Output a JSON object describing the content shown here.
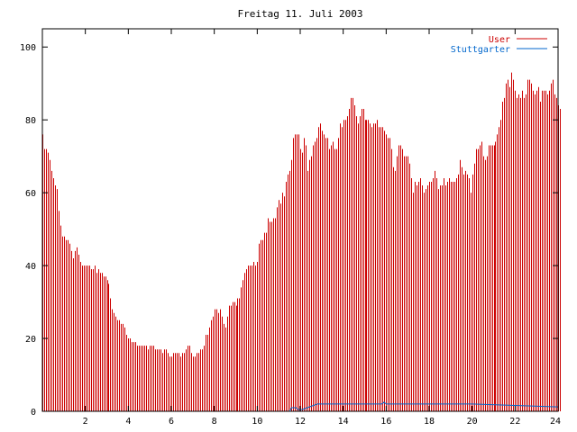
{
  "chart_data": {
    "type": "bar",
    "title": "Freitag 11. Juli 2003",
    "xlabel": "",
    "ylabel": "",
    "xlim": [
      0,
      24
    ],
    "ylim": [
      0,
      105
    ],
    "x_ticks": [
      2,
      4,
      6,
      8,
      10,
      12,
      14,
      16,
      18,
      20,
      22,
      24
    ],
    "y_ticks": [
      0,
      20,
      40,
      60,
      80,
      100
    ],
    "legend_position": "top-right",
    "grid": false,
    "series": [
      {
        "name": "User",
        "color": "#cc0000",
        "interval_minutes": 5,
        "values": [
          76,
          72,
          72,
          71,
          69,
          66,
          64,
          62,
          61,
          55,
          51,
          48,
          48,
          47,
          47,
          46,
          44,
          42,
          44,
          45,
          43,
          41,
          40,
          40,
          40,
          40,
          40,
          39,
          39,
          40,
          38,
          39,
          38,
          38,
          37,
          37,
          36,
          35,
          31,
          28,
          27,
          26,
          25,
          25,
          24,
          24,
          23,
          21,
          20,
          20,
          19,
          19,
          19,
          18,
          18,
          18,
          18,
          18,
          18,
          17,
          18,
          18,
          18,
          17,
          17,
          17,
          17,
          16,
          17,
          17,
          16,
          15,
          15,
          16,
          16,
          16,
          16,
          15,
          16,
          16,
          17,
          18,
          18,
          16,
          15,
          15,
          16,
          16,
          17,
          17,
          18,
          21,
          21,
          23,
          25,
          26,
          28,
          28,
          27,
          28,
          26,
          24,
          23,
          26,
          29,
          29,
          30,
          30,
          29,
          31,
          31,
          34,
          36,
          38,
          39,
          40,
          40,
          40,
          41,
          40,
          41,
          46,
          47,
          47,
          49,
          49,
          53,
          52,
          52,
          53,
          53,
          56,
          58,
          57,
          60,
          59,
          63,
          65,
          66,
          69,
          75,
          76,
          76,
          76,
          72,
          71,
          75,
          73,
          66,
          69,
          70,
          73,
          74,
          75,
          78,
          79,
          77,
          76,
          75,
          75,
          72,
          73,
          74,
          72,
          72,
          75,
          79,
          78,
          80,
          80,
          81,
          83,
          86,
          86,
          84,
          81,
          79,
          81,
          83,
          83,
          80,
          80,
          80,
          79,
          78,
          79,
          79,
          80,
          78,
          78,
          78,
          77,
          76,
          75,
          75,
          72,
          67,
          66,
          70,
          73,
          73,
          72,
          70,
          70,
          70,
          68,
          64,
          60,
          63,
          62,
          63,
          64,
          62,
          60,
          61,
          62,
          63,
          63,
          64,
          66,
          64,
          61,
          62,
          62,
          64,
          62,
          63,
          64,
          63,
          63,
          63,
          64,
          65,
          69,
          67,
          65,
          66,
          65,
          64,
          60,
          65,
          68,
          72,
          72,
          73,
          74,
          70,
          69,
          70,
          73,
          73,
          73,
          73,
          74,
          76,
          78,
          80,
          85,
          86,
          90,
          91,
          89,
          93,
          91,
          88,
          86,
          87,
          86,
          88,
          86,
          87,
          91,
          91,
          90,
          88,
          87,
          88,
          89,
          85,
          88,
          88,
          88,
          87,
          88,
          90,
          91,
          87,
          86,
          84,
          83
        ]
      },
      {
        "name": "Stuttgarter",
        "color": "#0066cc",
        "points": [
          [
            0,
            0
          ],
          [
            11.5,
            0
          ],
          [
            11.6,
            1
          ],
          [
            11.8,
            1
          ],
          [
            11.9,
            0.5
          ],
          [
            12.0,
            0.5
          ],
          [
            12.1,
            0.5
          ],
          [
            12.8,
            2
          ],
          [
            15.8,
            2
          ],
          [
            15.9,
            2.5
          ],
          [
            16.0,
            2
          ],
          [
            20.0,
            2
          ],
          [
            24,
            1.2
          ]
        ]
      }
    ],
    "annotations": []
  }
}
